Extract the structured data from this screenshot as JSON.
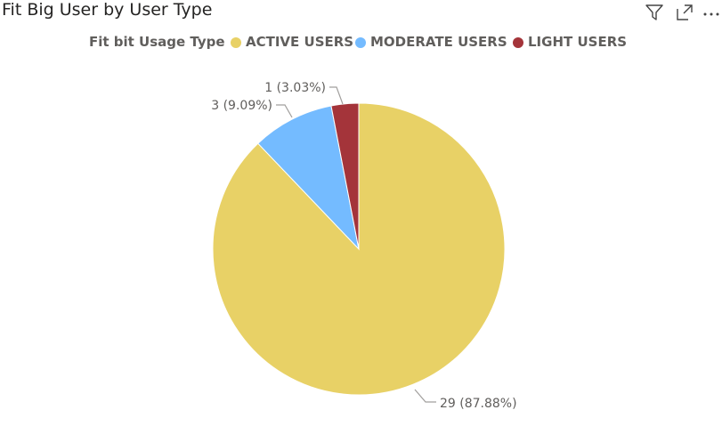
{
  "visual": {
    "title": "Fit Big User by User Type",
    "toolbar": {
      "icons": [
        "filter-icon",
        "focus-mode-icon",
        "more-options-icon"
      ]
    }
  },
  "legend": {
    "title": "Fit bit Usage Type"
  },
  "chart_data": {
    "type": "pie",
    "categories": [
      "ACTIVE USERS",
      "MODERATE USERS",
      "LIGHT USERS"
    ],
    "values": [
      29,
      3,
      1
    ],
    "percentages": [
      "87.88%",
      "9.09%",
      "3.03%"
    ],
    "data_labels": [
      "29 (87.88%)",
      "3 (9.09%)",
      "1 (3.03%)"
    ],
    "colors": [
      "#E8D166",
      "#74BBFF",
      "#A4343A"
    ],
    "legend_title": "Fit bit Usage Type",
    "legend_position": "top",
    "start_angle": "12 o'clock, clockwise"
  }
}
